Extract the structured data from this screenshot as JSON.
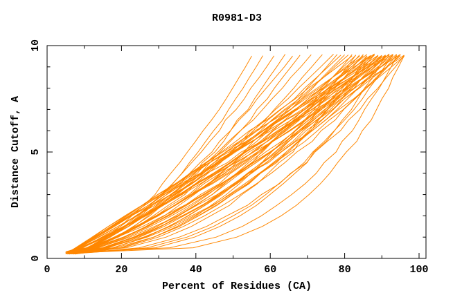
{
  "chart_data": {
    "type": "line",
    "title": "R0981-D3",
    "xlabel": "Percent of Residues (CA)",
    "ylabel": "Distance Cutoff, A",
    "xlim": [
      0,
      102
    ],
    "ylim": [
      0,
      10
    ],
    "x_major_ticks": [
      0,
      20,
      40,
      60,
      80,
      100
    ],
    "x_minor_step": 10,
    "y_major_ticks": [
      0,
      5,
      10
    ],
    "y_minor_step": 1,
    "legend": "none",
    "grid": false,
    "background_color": "#ffffff",
    "axis_color": "#000000",
    "text_color": "#000000",
    "curve_color": "#ff8700",
    "cutoff_start": 0.2,
    "cutoff_end": 9.55,
    "cutoff_step": 0.5,
    "wobble": 0.55,
    "curve_format": "[start_x_percent_at_cutoff_0.2, top_x_percent_at_cutoff_9.55, shape_exponent] ; x(y)=start+(top-start)*t^exponent, t=normalized cutoff",
    "curves": [
      [
        5,
        55,
        0.62
      ],
      [
        5.5,
        58,
        0.6
      ],
      [
        6,
        61,
        0.66
      ],
      [
        5.5,
        64,
        0.6
      ],
      [
        6.5,
        66,
        0.7
      ],
      [
        6,
        68,
        0.63
      ],
      [
        6.5,
        71,
        0.71
      ],
      [
        7,
        74,
        0.66
      ],
      [
        5,
        77,
        0.74
      ],
      [
        6,
        78,
        0.62
      ],
      [
        6.5,
        79,
        0.78
      ],
      [
        5.5,
        80,
        0.68
      ],
      [
        7,
        81,
        0.8
      ],
      [
        6,
        82,
        0.57
      ],
      [
        5.5,
        82,
        0.92
      ],
      [
        6,
        83,
        0.72
      ],
      [
        6.5,
        83,
        0.5
      ],
      [
        5,
        84,
        0.85
      ],
      [
        7,
        84,
        0.62
      ],
      [
        6,
        85,
        0.95
      ],
      [
        5.5,
        85,
        0.7
      ],
      [
        6.5,
        85,
        0.55
      ],
      [
        7.5,
        86,
        0.88
      ],
      [
        5,
        86,
        0.66
      ],
      [
        6,
        86,
        0.44
      ],
      [
        6.5,
        87,
        0.92
      ],
      [
        5.5,
        87,
        0.74
      ],
      [
        7,
        87,
        0.58
      ],
      [
        6,
        88,
        1.0
      ],
      [
        5,
        88,
        0.8
      ],
      [
        6.5,
        88,
        0.63
      ],
      [
        7.5,
        88,
        0.52
      ],
      [
        5.5,
        89,
        0.95
      ],
      [
        6,
        89,
        0.76
      ],
      [
        7,
        89,
        0.6
      ],
      [
        6.5,
        90,
        1.02
      ],
      [
        5,
        90,
        0.84
      ],
      [
        6,
        90,
        0.68
      ],
      [
        7.5,
        90,
        0.55
      ],
      [
        6.5,
        91,
        0.38
      ],
      [
        5.5,
        91,
        0.96
      ],
      [
        6.5,
        91,
        0.78
      ],
      [
        7,
        91,
        0.62
      ],
      [
        6,
        92,
        1.05
      ],
      [
        5,
        92,
        0.86
      ],
      [
        6.5,
        92,
        0.7
      ],
      [
        7.5,
        92,
        0.58
      ],
      [
        5.5,
        93,
        0.98
      ],
      [
        6,
        93,
        0.8
      ],
      [
        7,
        93,
        0.65
      ],
      [
        7.5,
        93,
        0.42
      ],
      [
        6.5,
        94,
        0.9
      ],
      [
        5.5,
        94,
        0.72
      ],
      [
        7.5,
        94,
        0.55
      ],
      [
        7,
        94,
        0.32
      ],
      [
        6,
        95,
        0.95
      ],
      [
        6.5,
        95,
        0.75
      ],
      [
        7,
        95,
        0.6
      ],
      [
        5.5,
        96,
        0.88
      ],
      [
        6,
        96,
        0.68
      ],
      [
        7,
        96,
        0.46
      ],
      [
        7,
        96,
        0.28
      ]
    ]
  }
}
